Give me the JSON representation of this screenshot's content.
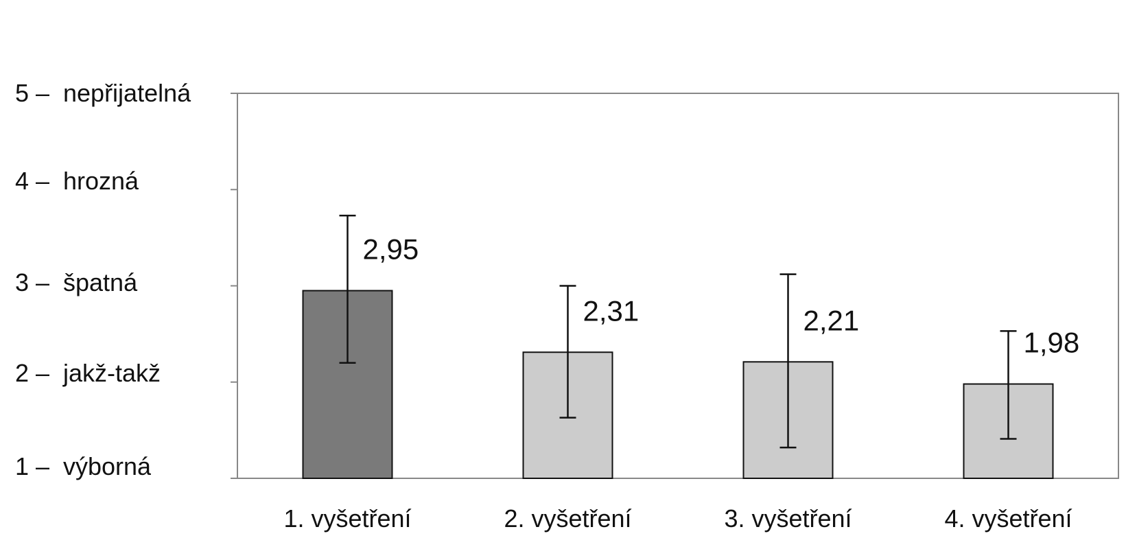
{
  "chart_data": {
    "type": "bar",
    "title": "",
    "xlabel": "",
    "ylabel": "",
    "categories": [
      "1. vyšetření",
      "2. vyšetření",
      "3. vyšetření",
      "4. vyšetření"
    ],
    "values": [
      2.95,
      2.31,
      2.21,
      1.98
    ],
    "value_labels": [
      "2,95",
      "2,31",
      "2,21",
      "1,98"
    ],
    "error_low": [
      2.2,
      1.63,
      1.32,
      1.41
    ],
    "error_high": [
      3.73,
      3.0,
      3.12,
      2.53
    ],
    "bar_colors": [
      "#7a7a7a",
      "#cccccc",
      "#cccccc",
      "#cccccc"
    ],
    "ylim": [
      1,
      5
    ],
    "yticks": [
      {
        "value": 5,
        "num": "5",
        "text": "nepřijatelná"
      },
      {
        "value": 4,
        "num": "4",
        "text": "hrozná"
      },
      {
        "value": 3,
        "num": "3",
        "text": "špatná"
      },
      {
        "value": 2,
        "num": "2",
        "text": "jakž-takž"
      },
      {
        "value": 1,
        "num": "1",
        "text": "výborná"
      }
    ],
    "grid": false,
    "legend": "none"
  }
}
